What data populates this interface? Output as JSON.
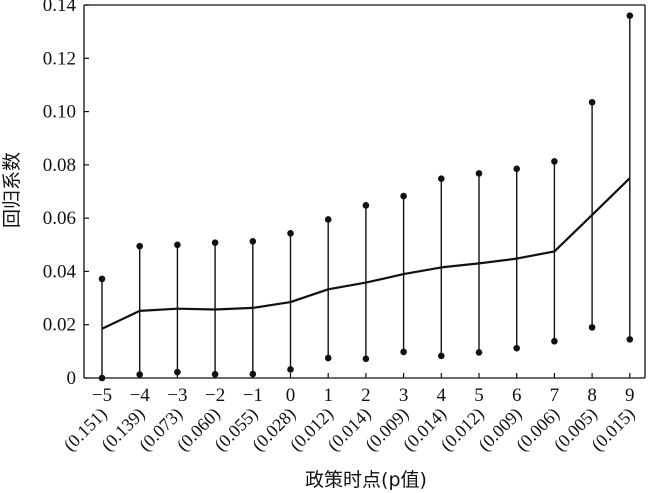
{
  "chart_data": {
    "type": "line",
    "xlabel": "政策时点(p值)",
    "ylabel": "回归系数",
    "ylim": [
      0,
      0.14
    ],
    "yticks": [
      "0",
      "0.02",
      "0.04",
      "0.06",
      "0.08",
      "0.10",
      "0.12",
      "0.14"
    ],
    "categories": [
      "−5",
      "−4",
      "−3",
      "−2",
      "−1",
      "0",
      "1",
      "2",
      "3",
      "4",
      "5",
      "6",
      "7",
      "8",
      "9"
    ],
    "p_values": [
      "(0.151)",
      "(0.139)",
      "(0.073)",
      "(0.060)",
      "(0.055)",
      "(0.028)",
      "(0.012)",
      "(0.014)",
      "(0.009)",
      "(0.014)",
      "(0.012)",
      "(0.009)",
      "(0.006)",
      "(0.005)",
      "(0.015)"
    ],
    "series": [
      {
        "values": [
          0.0185,
          0.0252,
          0.026,
          0.0257,
          0.0263,
          0.0285,
          0.0333,
          0.0358,
          0.039,
          0.0415,
          0.043,
          0.0448,
          0.0475,
          0.0612,
          0.075
        ]
      }
    ],
    "lower": [
      0.0,
      0.0013,
      0.0022,
      0.0014,
      0.0015,
      0.0032,
      0.0075,
      0.0072,
      0.0098,
      0.0083,
      0.0096,
      0.0112,
      0.0138,
      0.019,
      0.0145
    ],
    "upper": [
      0.0372,
      0.0495,
      0.05,
      0.0508,
      0.0513,
      0.0543,
      0.0595,
      0.0648,
      0.0683,
      0.0748,
      0.0768,
      0.0785,
      0.0813,
      0.1035,
      0.136
    ],
    "grid": false,
    "legend": "none"
  }
}
